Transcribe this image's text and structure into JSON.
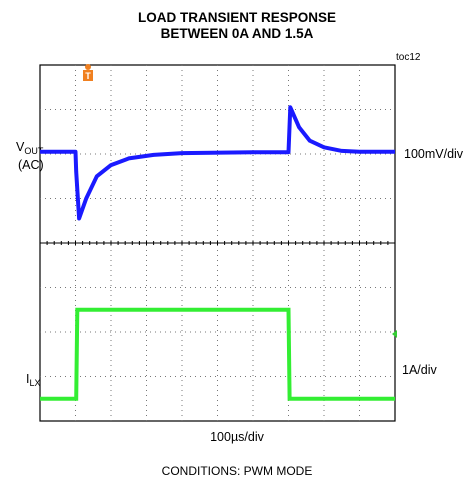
{
  "chart_data": {
    "type": "line",
    "title": "LOAD TRANSIENT RESPONSE",
    "subtitle": "BETWEEN 0A AND 1.5A",
    "figure_tag": "toc12",
    "xlabel": "100µs/div",
    "footer": "CONDITIONS: PWM MODE",
    "trigger_marker": "T",
    "grid": true,
    "x_divisions": 10,
    "y_divisions": 8,
    "series": [
      {
        "name_main": "V",
        "name_sub": "OUT",
        "name_line2": "(AC)",
        "scale": "100mV/div",
        "color": "#1a1aff",
        "units": "div",
        "points": [
          [
            0,
            6.05
          ],
          [
            1.0,
            6.05
          ],
          [
            1.02,
            5.6
          ],
          [
            1.1,
            4.55
          ],
          [
            1.3,
            5.0
          ],
          [
            1.6,
            5.5
          ],
          [
            2.0,
            5.75
          ],
          [
            2.5,
            5.9
          ],
          [
            3.2,
            5.98
          ],
          [
            4.0,
            6.02
          ],
          [
            6.0,
            6.04
          ],
          [
            7.0,
            6.04
          ],
          [
            7.05,
            7.05
          ],
          [
            7.3,
            6.6
          ],
          [
            7.6,
            6.3
          ],
          [
            8.0,
            6.15
          ],
          [
            8.5,
            6.07
          ],
          [
            9.0,
            6.05
          ],
          [
            10,
            6.05
          ]
        ]
      },
      {
        "name_main": "I",
        "name_sub": "LX",
        "scale": "1A/div",
        "color": "#33ee33",
        "units": "div",
        "points": [
          [
            0,
            0.5
          ],
          [
            1.02,
            0.5
          ],
          [
            1.05,
            2.5
          ],
          [
            7.0,
            2.5
          ],
          [
            7.03,
            0.5
          ],
          [
            10,
            0.5
          ]
        ]
      }
    ]
  }
}
